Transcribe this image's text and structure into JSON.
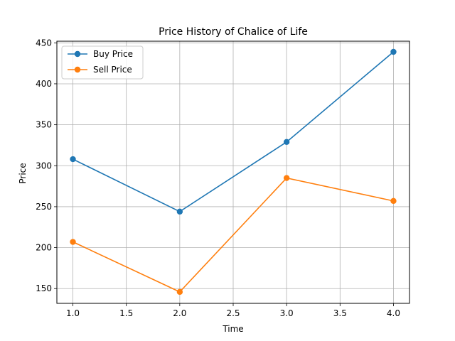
{
  "chart_data": {
    "type": "line",
    "title": "Price History of Chalice of Life",
    "xlabel": "Time",
    "ylabel": "Price",
    "xlim": [
      0.85,
      4.15
    ],
    "ylim": [
      132,
      452
    ],
    "xticks": [
      1.0,
      1.5,
      2.0,
      2.5,
      3.0,
      3.5,
      4.0
    ],
    "xtick_labels": [
      "1.0",
      "1.5",
      "2.0",
      "2.5",
      "3.0",
      "3.5",
      "4.0"
    ],
    "yticks": [
      150,
      200,
      250,
      300,
      350,
      400,
      450
    ],
    "ytick_labels": [
      "150",
      "200",
      "250",
      "300",
      "350",
      "400",
      "450"
    ],
    "grid": true,
    "legend": "top-left",
    "x": [
      1.0,
      2.0,
      3.0,
      4.0
    ],
    "series": [
      {
        "name": "Buy Price",
        "values": [
          308,
          244,
          329,
          439
        ],
        "color": "#1f77b4"
      },
      {
        "name": "Sell Price",
        "values": [
          207,
          146,
          285,
          257
        ],
        "color": "#ff7f0e"
      }
    ]
  }
}
